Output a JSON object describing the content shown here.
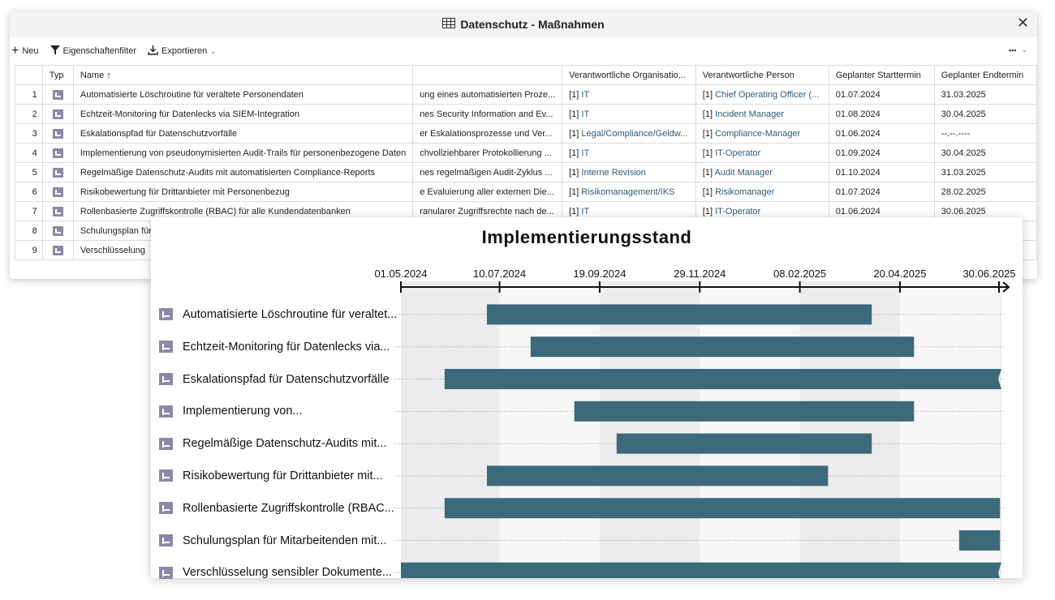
{
  "window": {
    "title": "Datenschutz - Maßnahmen",
    "close": "✕"
  },
  "toolbar": {
    "new": "Neu",
    "filter": "Eigenschaftenfilter",
    "export": "Exportieren",
    "more": "•••"
  },
  "table": {
    "headers": [
      "",
      "Typ",
      "Name ↑",
      "",
      "Verantwortliche Organisatio...",
      "Verantwortliche Person",
      "Geplanter Starttermin",
      "Geplanter Endtermin"
    ],
    "rows": [
      {
        "n": "1",
        "name": "Automatisierte Löschroutine für veraltete Personendaten",
        "desc": "ung eines automatisierten Proze...",
        "org_prefix": "[1]",
        "org": "IT",
        "person_prefix": "[1]",
        "person": "Chief Operating Officer (...",
        "start": "01.07.2024",
        "end": "31.03.2025"
      },
      {
        "n": "2",
        "name": "Echtzeit-Monitoring für Datenlecks via SIEM-Integration",
        "desc": "nes Security Information and Ev...",
        "org_prefix": "[1]",
        "org": "IT",
        "person_prefix": "[1]",
        "person": "Incident Manager",
        "start": "01.08.2024",
        "end": "30.04.2025"
      },
      {
        "n": "3",
        "name": "Eskalationspfad für Datenschutzvorfälle",
        "desc": "er Eskalationsprozesse und Ver...",
        "org_prefix": "[1]",
        "org": "Legal/Compliance/Geldw...",
        "person_prefix": "[1]",
        "person": "Compliance-Manager",
        "start": "01.06.2024",
        "end": "--.--.----"
      },
      {
        "n": "4",
        "name": "Implementierung von pseudonymisierten Audit-Trails für personenbezogene Daten",
        "desc": "chvollziehbarer Protokollierung ...",
        "org_prefix": "[1]",
        "org": "IT",
        "person_prefix": "[1]",
        "person": "IT-Operator",
        "start": "01.09.2024",
        "end": "30.04.2025"
      },
      {
        "n": "5",
        "name": "Regelmäßige Datenschutz-Audits mit automatisierten Compliance-Reports",
        "desc": "nes regelmäßigen Audit-Zyklus ...",
        "org_prefix": "[1]",
        "org": "Interne Revision",
        "person_prefix": "[1]",
        "person": "Audit Manager",
        "start": "01.10.2024",
        "end": "31.03.2025"
      },
      {
        "n": "6",
        "name": "Risikobewertung für Drittanbieter mit Personenbezug",
        "desc": "e Evaluierung aller externen Die...",
        "org_prefix": "[1]",
        "org": "Risikomanagement/IKS",
        "person_prefix": "[1]",
        "person": "Risikomanager",
        "start": "01.07.2024",
        "end": "28.02.2025"
      },
      {
        "n": "7",
        "name": "Rollenbasierte Zugriffskontrolle (RBAC) für alle Kundendatenbanken",
        "desc": "ranularer Zugriffsrechte nach de...",
        "org_prefix": "[1]",
        "org": "IT",
        "person_prefix": "[1]",
        "person": "IT-Operator",
        "start": "01.06.2024",
        "end": "30.06.2025"
      },
      {
        "n": "8",
        "name": "Schulungsplan für",
        "desc": "",
        "org_prefix": "",
        "org": "",
        "person_prefix": "",
        "person": "",
        "start": "",
        "end": ""
      },
      {
        "n": "9",
        "name": "Verschlüsselung",
        "desc": "",
        "org_prefix": "",
        "org": "",
        "person_prefix": "",
        "person": "",
        "start": "",
        "end": ""
      }
    ]
  },
  "chart_data": {
    "type": "gantt",
    "title": "Implementierungsstand",
    "x_ticks": [
      "01.05.2024",
      "10.07.2024",
      "19.09.2024",
      "29.11.2024",
      "08.02.2025",
      "20.04.2025",
      "30.06.2025"
    ],
    "x_range": [
      "2024-05-01",
      "2025-07-01"
    ],
    "bar_color": "#3c6a7a",
    "tasks": [
      {
        "label": "Automatisierte Löschroutine für veraltet...",
        "start": "2024-07-01",
        "end": "2025-03-31"
      },
      {
        "label": "Echtzeit-Monitoring für Datenlecks via...",
        "start": "2024-08-01",
        "end": "2025-04-30"
      },
      {
        "label": "Eskalationspfad für Datenschutzvorfälle",
        "start": "2024-06-01",
        "end": "2025-07-01",
        "open_end": true
      },
      {
        "label": "Implementierung von...",
        "start": "2024-09-01",
        "end": "2025-04-30"
      },
      {
        "label": "Regelmäßige Datenschutz-Audits mit...",
        "start": "2024-10-01",
        "end": "2025-03-31"
      },
      {
        "label": "Risikobewertung für Drittanbieter mit...",
        "start": "2024-07-01",
        "end": "2025-02-28"
      },
      {
        "label": "Rollenbasierte Zugriffskontrolle (RBAC...",
        "start": "2024-06-01",
        "end": "2025-06-30"
      },
      {
        "label": "Schulungsplan für Mitarbeitenden mit...",
        "start": "2025-06-01",
        "end": "2025-06-30"
      },
      {
        "label": "Verschlüsselung sensibler Dokumente...",
        "start": "2024-05-01",
        "end": "2025-07-01",
        "open_end": true
      }
    ]
  }
}
